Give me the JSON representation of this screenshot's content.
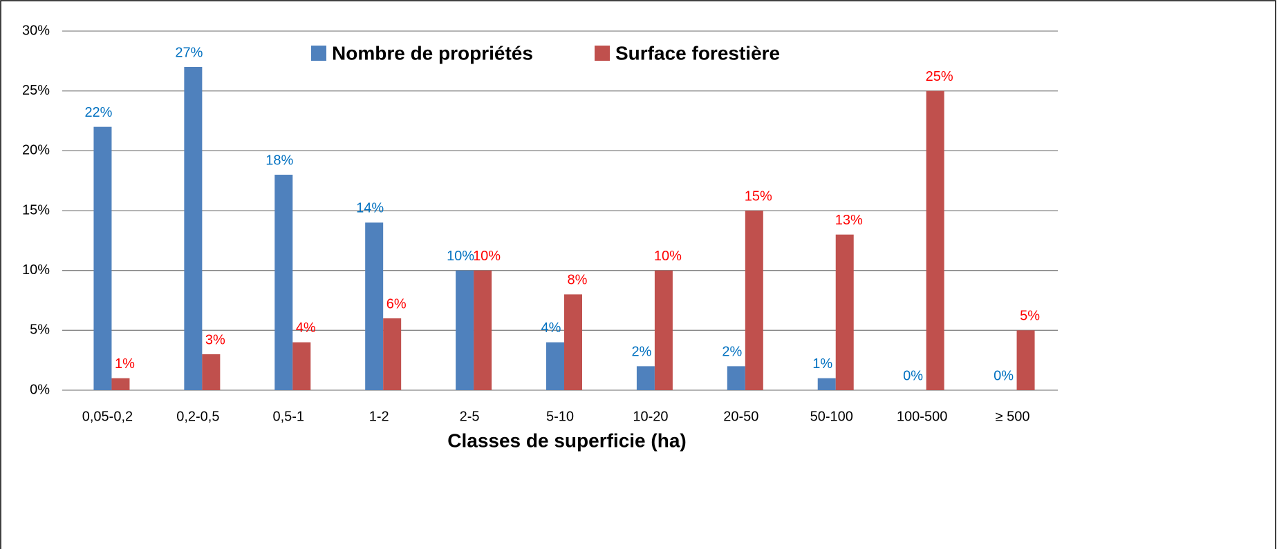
{
  "chart_data": {
    "type": "bar",
    "x_label": "Classes de superficie (ha)",
    "categories": [
      "0,05-0,2",
      "0,2-0,5",
      "0,5-1",
      "1-2",
      "2-5",
      "5-10",
      "10-20",
      "20-50",
      "50-100",
      "100-500",
      "≥ 500"
    ],
    "series": [
      {
        "name": "Nombre de propriétés",
        "color": "#4f81bd",
        "label_color": "#0070c0",
        "values": [
          22,
          27,
          18,
          14,
          10,
          4,
          2,
          2,
          1,
          0,
          0
        ],
        "value_labels": [
          "22%",
          "27%",
          "18%",
          "14%",
          "10%",
          "4%",
          "2%",
          "2%",
          "1%",
          "0%",
          "0%"
        ]
      },
      {
        "name": "Surface forestière",
        "color": "#c0504d",
        "label_color": "#ff0000",
        "values": [
          1,
          3,
          4,
          6,
          10,
          8,
          10,
          15,
          13,
          25,
          5
        ],
        "value_labels": [
          "1%",
          "3%",
          "4%",
          "6%",
          "10%",
          "8%",
          "10%",
          "15%",
          "13%",
          "25%",
          "5%"
        ]
      }
    ],
    "ylim": [
      0,
      30
    ],
    "yticks": [
      {
        "value": 0,
        "label": "0%"
      },
      {
        "value": 5,
        "label": "5%"
      },
      {
        "value": 10,
        "label": "10%"
      },
      {
        "value": 15,
        "label": "15%"
      },
      {
        "value": 20,
        "label": "20%"
      },
      {
        "value": 25,
        "label": "25%"
      },
      {
        "value": 30,
        "label": "30%"
      }
    ],
    "grid": true,
    "legend": "top"
  }
}
